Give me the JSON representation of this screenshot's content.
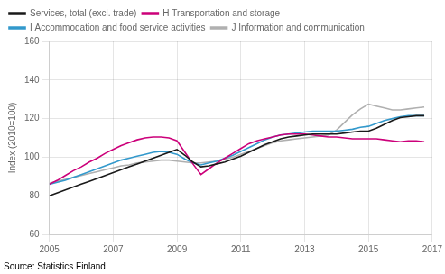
{
  "chart_data": {
    "type": "line",
    "ylabel": "Index (2010=100)",
    "source": "Source: Statistics Finland",
    "x": [
      2005.0,
      2005.25,
      2005.5,
      2005.75,
      2006.0,
      2006.25,
      2006.5,
      2006.75,
      2007.0,
      2007.25,
      2007.5,
      2007.75,
      2008.0,
      2008.25,
      2008.5,
      2008.75,
      2009.0,
      2009.25,
      2009.5,
      2009.75,
      2010.0,
      2010.25,
      2010.5,
      2010.75,
      2011.0,
      2011.25,
      2011.5,
      2011.75,
      2012.0,
      2012.25,
      2012.5,
      2012.75,
      2013.0,
      2013.25,
      2013.5,
      2013.75,
      2014.0,
      2014.25,
      2014.5,
      2014.75,
      2015.0,
      2015.25,
      2015.5,
      2015.75,
      2016.0,
      2016.25,
      2016.5,
      2016.75
    ],
    "series": [
      {
        "name": "Services, total (excl. trade)",
        "color": "#1a1a1a",
        "values": [
          80.0,
          81.5,
          83.0,
          84.5,
          86.0,
          87.5,
          89.0,
          90.5,
          92.0,
          93.5,
          95.0,
          96.5,
          98.0,
          99.5,
          101.0,
          102.5,
          104.0,
          101.0,
          97.5,
          95.0,
          95.5,
          96.5,
          97.5,
          99.0,
          100.5,
          102.5,
          104.5,
          106.5,
          108.0,
          109.5,
          110.5,
          111.0,
          111.5,
          112.0,
          112.0,
          112.0,
          112.0,
          112.5,
          113.0,
          113.5,
          113.5,
          115.0,
          117.0,
          119.0,
          120.5,
          121.0,
          121.5,
          121.5
        ]
      },
      {
        "name": "H Transportation and storage",
        "color": "#cc007a",
        "values": [
          86.0,
          88.0,
          90.5,
          93.0,
          95.0,
          97.5,
          99.5,
          102.0,
          104.0,
          106.0,
          107.5,
          109.0,
          110.0,
          110.5,
          110.5,
          110.0,
          108.5,
          102.5,
          96.5,
          91.0,
          94.0,
          97.0,
          99.5,
          102.0,
          104.5,
          107.0,
          108.5,
          109.5,
          110.5,
          111.5,
          112.0,
          112.0,
          112.0,
          111.5,
          111.0,
          110.5,
          110.5,
          110.0,
          109.5,
          109.5,
          109.5,
          109.5,
          109.0,
          108.5,
          108.0,
          108.5,
          108.5,
          108.0
        ]
      },
      {
        "name": "I Accommodation and food service activities",
        "color": "#3399cc",
        "values": [
          86.0,
          87.0,
          88.0,
          89.5,
          91.0,
          92.5,
          94.0,
          95.5,
          97.0,
          98.5,
          99.5,
          100.5,
          101.5,
          102.5,
          103.0,
          102.5,
          101.5,
          99.0,
          97.0,
          96.0,
          97.0,
          98.0,
          99.5,
          101.0,
          103.0,
          105.0,
          107.0,
          109.0,
          110.5,
          111.5,
          112.0,
          112.5,
          113.0,
          113.5,
          113.5,
          113.5,
          113.5,
          114.0,
          114.5,
          115.5,
          116.0,
          117.5,
          119.0,
          120.0,
          121.0,
          121.5,
          121.5,
          121.5
        ]
      },
      {
        "name": "J Information and communication",
        "color": "#b0b0b0",
        "values": [
          86.5,
          87.5,
          88.5,
          89.5,
          90.5,
          91.5,
          92.5,
          93.5,
          94.5,
          95.5,
          96.0,
          97.0,
          97.5,
          98.0,
          98.5,
          98.5,
          98.0,
          97.5,
          97.0,
          97.0,
          97.5,
          98.0,
          99.0,
          100.0,
          101.5,
          103.0,
          104.5,
          106.0,
          107.5,
          108.5,
          109.0,
          109.5,
          110.0,
          110.5,
          111.0,
          111.5,
          114.0,
          118.0,
          122.0,
          125.0,
          127.5,
          126.5,
          125.5,
          124.5,
          124.5,
          125.0,
          125.5,
          126.0
        ]
      }
    ],
    "xlim": [
      2005.0,
      2017.0
    ],
    "xticks": [
      2005,
      2007,
      2009,
      2011,
      2013,
      2015,
      2017
    ],
    "ylim": [
      60,
      160
    ],
    "yticks": [
      60,
      80,
      100,
      120,
      140,
      160
    ],
    "grid": true,
    "legend": "upper left"
  }
}
